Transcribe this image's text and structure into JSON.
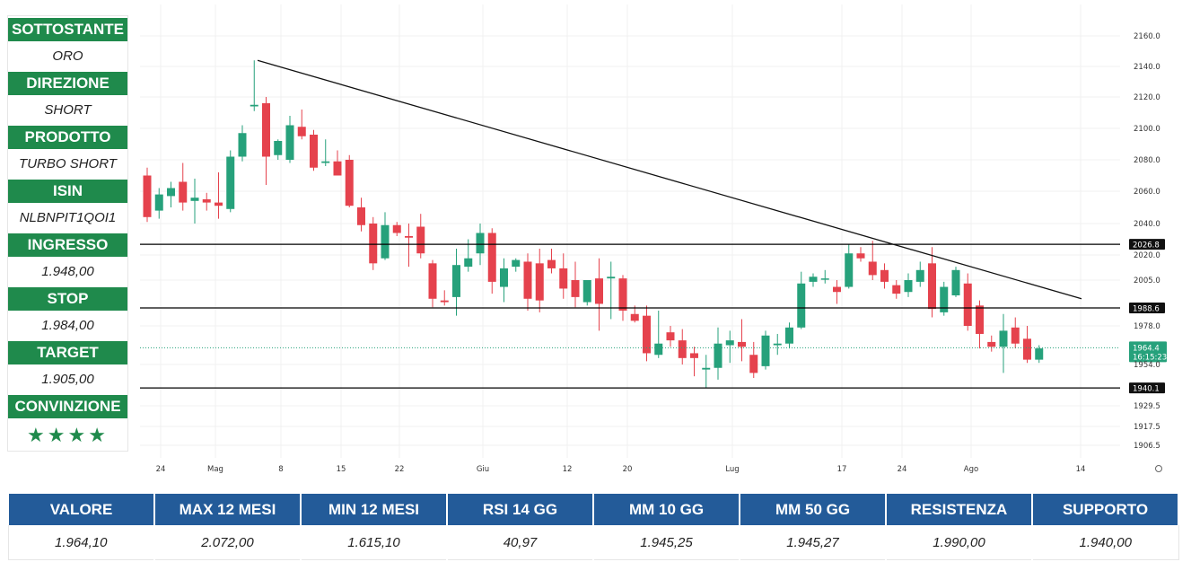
{
  "info": {
    "rows": [
      {
        "label": "SOTTOSTANTE",
        "value": "ORO"
      },
      {
        "label": "DIREZIONE",
        "value": "SHORT"
      },
      {
        "label": "PRODOTTO",
        "value": "TURBO SHORT"
      },
      {
        "label": "ISIN",
        "value": "NLBNPIT1QOI1"
      },
      {
        "label": "INGRESSO",
        "value": "1.948,00"
      },
      {
        "label": "STOP",
        "value": "1.984,00"
      },
      {
        "label": "TARGET",
        "value": "1.905,00"
      }
    ],
    "conviction_label": "CONVINZIONE",
    "conviction_stars": "★★★★"
  },
  "stats": {
    "headers": [
      "VALORE",
      "MAX 12 MESI",
      "MIN 12 MESI",
      "RSI 14 GG",
      "MM 10 GG",
      "MM 50 GG",
      "RESISTENZA",
      "SUPPORTO"
    ],
    "values": [
      "1.964,10",
      "2.072,00",
      "1.615,10",
      "40,97",
      "1.945,25",
      "1.945,27",
      "1.990,00",
      "1.940,00"
    ]
  },
  "colors": {
    "up": "#26a17b",
    "down": "#e5424d",
    "header_green": "#1f8a4c",
    "header_blue": "#235b99"
  },
  "chart_data": {
    "type": "candlestick",
    "y_ticks": [
      "2160.0",
      "2140.0",
      "2120.0",
      "2100.0",
      "2080.0",
      "2060.0",
      "2040.0",
      "2020.0",
      "2005.0",
      "1978.0",
      "1954.0",
      "1929.5",
      "1917.5",
      "1906.5"
    ],
    "x_ticks": [
      "24",
      "Mag",
      "8",
      "15",
      "22",
      "Giu",
      "12",
      "20",
      "Lug",
      "17",
      "24",
      "Ago",
      "14"
    ],
    "levels": [
      {
        "value": 2026.8,
        "label": "2026.8"
      },
      {
        "value": 1988.6,
        "label": "1988.6"
      },
      {
        "value": 1940.1,
        "label": "1940.1"
      }
    ],
    "last_price": {
      "value": 1964.4,
      "label": "1964.4",
      "timer": "16:15:23"
    },
    "trendline": {
      "from": {
        "date": "2023-05-04",
        "price": 2144
      },
      "to": {
        "date": "2023-08-14",
        "price": 1994
      }
    },
    "candles": [
      {
        "o": 2070,
        "h": 2075,
        "l": 2041,
        "c": 2044
      },
      {
        "o": 2048,
        "h": 2062,
        "l": 2043,
        "c": 2058
      },
      {
        "o": 2057,
        "h": 2066,
        "l": 2050,
        "c": 2062
      },
      {
        "o": 2066,
        "h": 2078,
        "l": 2048,
        "c": 2053
      },
      {
        "o": 2054,
        "h": 2068,
        "l": 2040,
        "c": 2056
      },
      {
        "o": 2055,
        "h": 2059,
        "l": 2048,
        "c": 2053
      },
      {
        "o": 2053,
        "h": 2072,
        "l": 2043,
        "c": 2051
      },
      {
        "o": 2049,
        "h": 2086,
        "l": 2047,
        "c": 2082
      },
      {
        "o": 2082,
        "h": 2102,
        "l": 2079,
        "c": 2097
      },
      {
        "o": 2114,
        "h": 2144,
        "l": 2111,
        "c": 2115
      },
      {
        "o": 2116,
        "h": 2120,
        "l": 2064,
        "c": 2082
      },
      {
        "o": 2083,
        "h": 2093,
        "l": 2080,
        "c": 2092
      },
      {
        "o": 2080,
        "h": 2108,
        "l": 2078,
        "c": 2102
      },
      {
        "o": 2101,
        "h": 2112,
        "l": 2093,
        "c": 2095
      },
      {
        "o": 2096,
        "h": 2099,
        "l": 2073,
        "c": 2075
      },
      {
        "o": 2078,
        "h": 2093,
        "l": 2076,
        "c": 2079
      },
      {
        "o": 2079,
        "h": 2086,
        "l": 2070,
        "c": 2070
      },
      {
        "o": 2080,
        "h": 2083,
        "l": 2050,
        "c": 2051
      },
      {
        "o": 2050,
        "h": 2056,
        "l": 2035,
        "c": 2039
      },
      {
        "o": 2040,
        "h": 2044,
        "l": 2011,
        "c": 2015
      },
      {
        "o": 2018,
        "h": 2047,
        "l": 2017,
        "c": 2039
      },
      {
        "o": 2039,
        "h": 2041,
        "l": 2032,
        "c": 2034
      },
      {
        "o": 2032,
        "h": 2040,
        "l": 2013,
        "c": 2031
      },
      {
        "o": 2038,
        "h": 2046,
        "l": 2018,
        "c": 2021
      },
      {
        "o": 2015,
        "h": 2017,
        "l": 1989,
        "c": 1994
      },
      {
        "o": 1993,
        "h": 1999,
        "l": 1990,
        "c": 1992
      },
      {
        "o": 1995,
        "h": 2024,
        "l": 1984,
        "c": 2014
      },
      {
        "o": 2013,
        "h": 2030,
        "l": 2010,
        "c": 2018
      },
      {
        "o": 2021,
        "h": 2040,
        "l": 2014,
        "c": 2034
      },
      {
        "o": 2034,
        "h": 2037,
        "l": 1997,
        "c": 2004
      },
      {
        "o": 2001,
        "h": 2018,
        "l": 1992,
        "c": 2012
      },
      {
        "o": 2013,
        "h": 2018,
        "l": 2010,
        "c": 2017
      },
      {
        "o": 2016,
        "h": 2021,
        "l": 1987,
        "c": 1994
      },
      {
        "o": 2015,
        "h": 2024,
        "l": 1986,
        "c": 1993
      },
      {
        "o": 2017,
        "h": 2024,
        "l": 2009,
        "c": 2012
      },
      {
        "o": 2012,
        "h": 2021,
        "l": 1994,
        "c": 2000
      },
      {
        "o": 2005,
        "h": 2016,
        "l": 1989,
        "c": 1995
      },
      {
        "o": 1992,
        "h": 2005,
        "l": 1990,
        "c": 2005
      },
      {
        "o": 2006,
        "h": 2018,
        "l": 1975,
        "c": 1991
      },
      {
        "o": 2006,
        "h": 2016,
        "l": 1982,
        "c": 2007
      },
      {
        "o": 2006,
        "h": 2008,
        "l": 1981,
        "c": 1987
      },
      {
        "o": 1985,
        "h": 1990,
        "l": 1980,
        "c": 1981
      },
      {
        "o": 1984,
        "h": 1990,
        "l": 1956,
        "c": 1961
      },
      {
        "o": 1960,
        "h": 1987,
        "l": 1958,
        "c": 1967
      },
      {
        "o": 1974,
        "h": 1978,
        "l": 1965,
        "c": 1969
      },
      {
        "o": 1969,
        "h": 1976,
        "l": 1954,
        "c": 1958
      },
      {
        "o": 1961,
        "h": 1965,
        "l": 1947,
        "c": 1958
      },
      {
        "o": 1951,
        "h": 1960,
        "l": 1940,
        "c": 1952
      },
      {
        "o": 1952,
        "h": 1977,
        "l": 1945,
        "c": 1967
      },
      {
        "o": 1966,
        "h": 1975,
        "l": 1955,
        "c": 1969
      },
      {
        "o": 1968,
        "h": 1982,
        "l": 1956,
        "c": 1965
      },
      {
        "o": 1960,
        "h": 1968,
        "l": 1946,
        "c": 1949
      },
      {
        "o": 1953,
        "h": 1975,
        "l": 1951,
        "c": 1972
      },
      {
        "o": 1966,
        "h": 1973,
        "l": 1960,
        "c": 1967
      },
      {
        "o": 1967,
        "h": 1980,
        "l": 1964,
        "c": 1977
      },
      {
        "o": 1977,
        "h": 2010,
        "l": 1976,
        "c": 2003
      },
      {
        "o": 2004,
        "h": 2009,
        "l": 2001,
        "c": 2007
      },
      {
        "o": 2006,
        "h": 2011,
        "l": 2003,
        "c": 2006
      },
      {
        "o": 2001,
        "h": 2005,
        "l": 1991,
        "c": 1998
      },
      {
        "o": 2001,
        "h": 2027,
        "l": 2000,
        "c": 2021
      },
      {
        "o": 2021,
        "h": 2025,
        "l": 2016,
        "c": 2018
      },
      {
        "o": 2016,
        "h": 2029,
        "l": 2005,
        "c": 2008
      },
      {
        "o": 2011,
        "h": 2015,
        "l": 2000,
        "c": 2004
      },
      {
        "o": 2002,
        "h": 2005,
        "l": 1994,
        "c": 1997
      },
      {
        "o": 1998,
        "h": 2009,
        "l": 1995,
        "c": 2005
      },
      {
        "o": 2004,
        "h": 2016,
        "l": 2001,
        "c": 2011
      },
      {
        "o": 2015,
        "h": 2025,
        "l": 1983,
        "c": 1988
      },
      {
        "o": 1986,
        "h": 2004,
        "l": 1984,
        "c": 2001
      },
      {
        "o": 1996,
        "h": 2013,
        "l": 1995,
        "c": 2011
      },
      {
        "o": 2003,
        "h": 2009,
        "l": 1975,
        "c": 1978
      },
      {
        "o": 1990,
        "h": 1993,
        "l": 1964,
        "c": 1973
      },
      {
        "o": 1968,
        "h": 1972,
        "l": 1962,
        "c": 1965
      },
      {
        "o": 1965,
        "h": 1985,
        "l": 1949,
        "c": 1975
      },
      {
        "o": 1977,
        "h": 1983,
        "l": 1964,
        "c": 1967
      },
      {
        "o": 1970,
        "h": 1978,
        "l": 1955,
        "c": 1957
      },
      {
        "o": 1957,
        "h": 1966,
        "l": 1955,
        "c": 1964
      }
    ]
  }
}
